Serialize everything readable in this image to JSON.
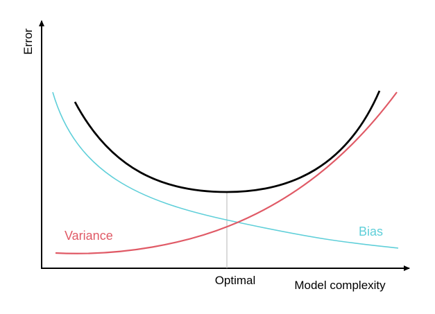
{
  "diagram": {
    "y_axis_label": "Error",
    "x_axis_label": "Model complexity",
    "marker_label": "Optimal",
    "curves": {
      "variance": {
        "label": "Variance",
        "color": "#e05a66"
      },
      "bias": {
        "label": "Bias",
        "color": "#5fcfd9"
      },
      "total": {
        "label": "",
        "color": "#000000"
      }
    },
    "marker_color": "#b5b5b5",
    "axis_color": "#000000"
  }
}
